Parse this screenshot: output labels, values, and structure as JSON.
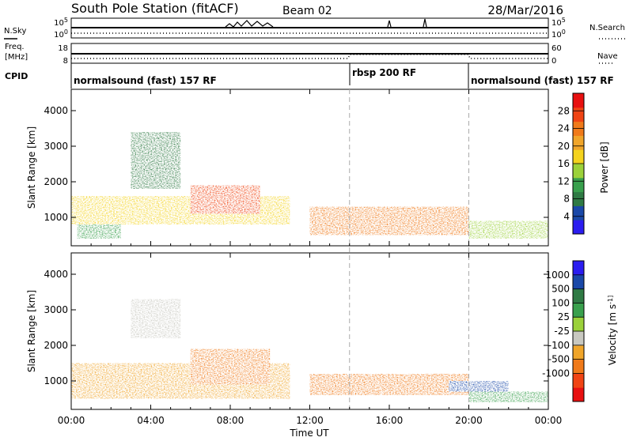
{
  "header": {
    "station": "South Pole Station (fitACF)",
    "beam": "Beam 02",
    "date": "28/Mar/2016"
  },
  "params": {
    "nsky_label": "N.Sky",
    "nsearch_label": "N.Search",
    "freq_label_line1": "Freq.",
    "freq_label_line2": "[MHz]",
    "nave_label": "Nave",
    "cpid_label": "CPID",
    "noise_top_tick": "10^5",
    "noise_bottom_tick": "10^0",
    "freq_top_tick": "18",
    "freq_bottom_tick": "8",
    "nave_top_tick": "60",
    "nave_bottom_tick": "0",
    "cpid_segments": [
      {
        "label": "normalsound (fast) 157 RF",
        "start_hour": 0
      },
      {
        "label": "rbsp 200 RF",
        "start_hour": 14
      },
      {
        "label": "normalsound (fast) 157 RF",
        "start_hour": 20
      }
    ]
  },
  "colors": {
    "power": [
      "#2b1df0",
      "#1a48a8",
      "#2f7a44",
      "#39a04d",
      "#9bd13a",
      "#f4d31e",
      "#f0a52a",
      "#f07a1a",
      "#f04414",
      "#e81010"
    ],
    "velocity": [
      "#e81010",
      "#f04414",
      "#f07a1a",
      "#f0a52a",
      "#c8c8c0",
      "#9bd13a",
      "#39a04d",
      "#2f7a44",
      "#1a48a8",
      "#2b1df0"
    ]
  },
  "chart_data": [
    {
      "type": "heatmap",
      "name": "power",
      "ylabel": "Slant Range [km]",
      "yticks": [
        "1000",
        "2000",
        "3000",
        "4000"
      ],
      "ylim": [
        200,
        4600
      ],
      "colorbar_label": "Power [dB]",
      "colorbar_ticks": [
        "4",
        "8",
        "12",
        "16",
        "20",
        "24",
        "28"
      ],
      "colorbar_range": [
        0,
        32
      ],
      "regions": [
        {
          "t0": 0.0,
          "t1": 11.0,
          "r0": 800,
          "r1": 1600,
          "value": 16
        },
        {
          "t0": 0.3,
          "t1": 2.5,
          "r0": 400,
          "r1": 800,
          "value": 10
        },
        {
          "t0": 3.0,
          "t1": 5.5,
          "r0": 1800,
          "r1": 3400,
          "value": 8
        },
        {
          "t0": 6.0,
          "t1": 9.5,
          "r0": 1100,
          "r1": 1900,
          "value": 26
        },
        {
          "t0": 12.0,
          "t1": 20.0,
          "r0": 500,
          "r1": 1300,
          "value": 24
        },
        {
          "t0": 20.0,
          "t1": 24.0,
          "r0": 400,
          "r1": 900,
          "value": 14
        }
      ]
    },
    {
      "type": "heatmap",
      "name": "velocity",
      "ylabel": "Slant Range [km]",
      "yticks": [
        "1000",
        "2000",
        "3000",
        "4000"
      ],
      "ylim": [
        200,
        4600
      ],
      "colorbar_label": "Velocity [m s^-1]",
      "colorbar_ticks": [
        "1000",
        "500",
        "100",
        "25",
        "-25",
        "-100",
        "-500",
        "-1000"
      ],
      "regions": [
        {
          "t0": 0.0,
          "t1": 11.0,
          "r0": 500,
          "r1": 1500,
          "value": -100
        },
        {
          "t0": 3.0,
          "t1": 5.5,
          "r0": 2200,
          "r1": 3300,
          "value": 0
        },
        {
          "t0": 6.0,
          "t1": 10.0,
          "r0": 900,
          "r1": 1900,
          "value": -500
        },
        {
          "t0": 12.0,
          "t1": 20.0,
          "r0": 600,
          "r1": 1200,
          "value": -500
        },
        {
          "t0": 19.0,
          "t1": 22.0,
          "r0": 700,
          "r1": 1000,
          "value": 1000
        },
        {
          "t0": 20.0,
          "t1": 24.0,
          "r0": 400,
          "r1": 700,
          "value": 100
        }
      ]
    }
  ],
  "xaxis": {
    "label": "Time UT",
    "ticks": [
      "00:00",
      "04:00",
      "08:00",
      "12:00",
      "16:00",
      "20:00",
      "00:00"
    ],
    "range_hours": [
      0,
      24
    ],
    "mode_change_hours": [
      14,
      20
    ]
  }
}
